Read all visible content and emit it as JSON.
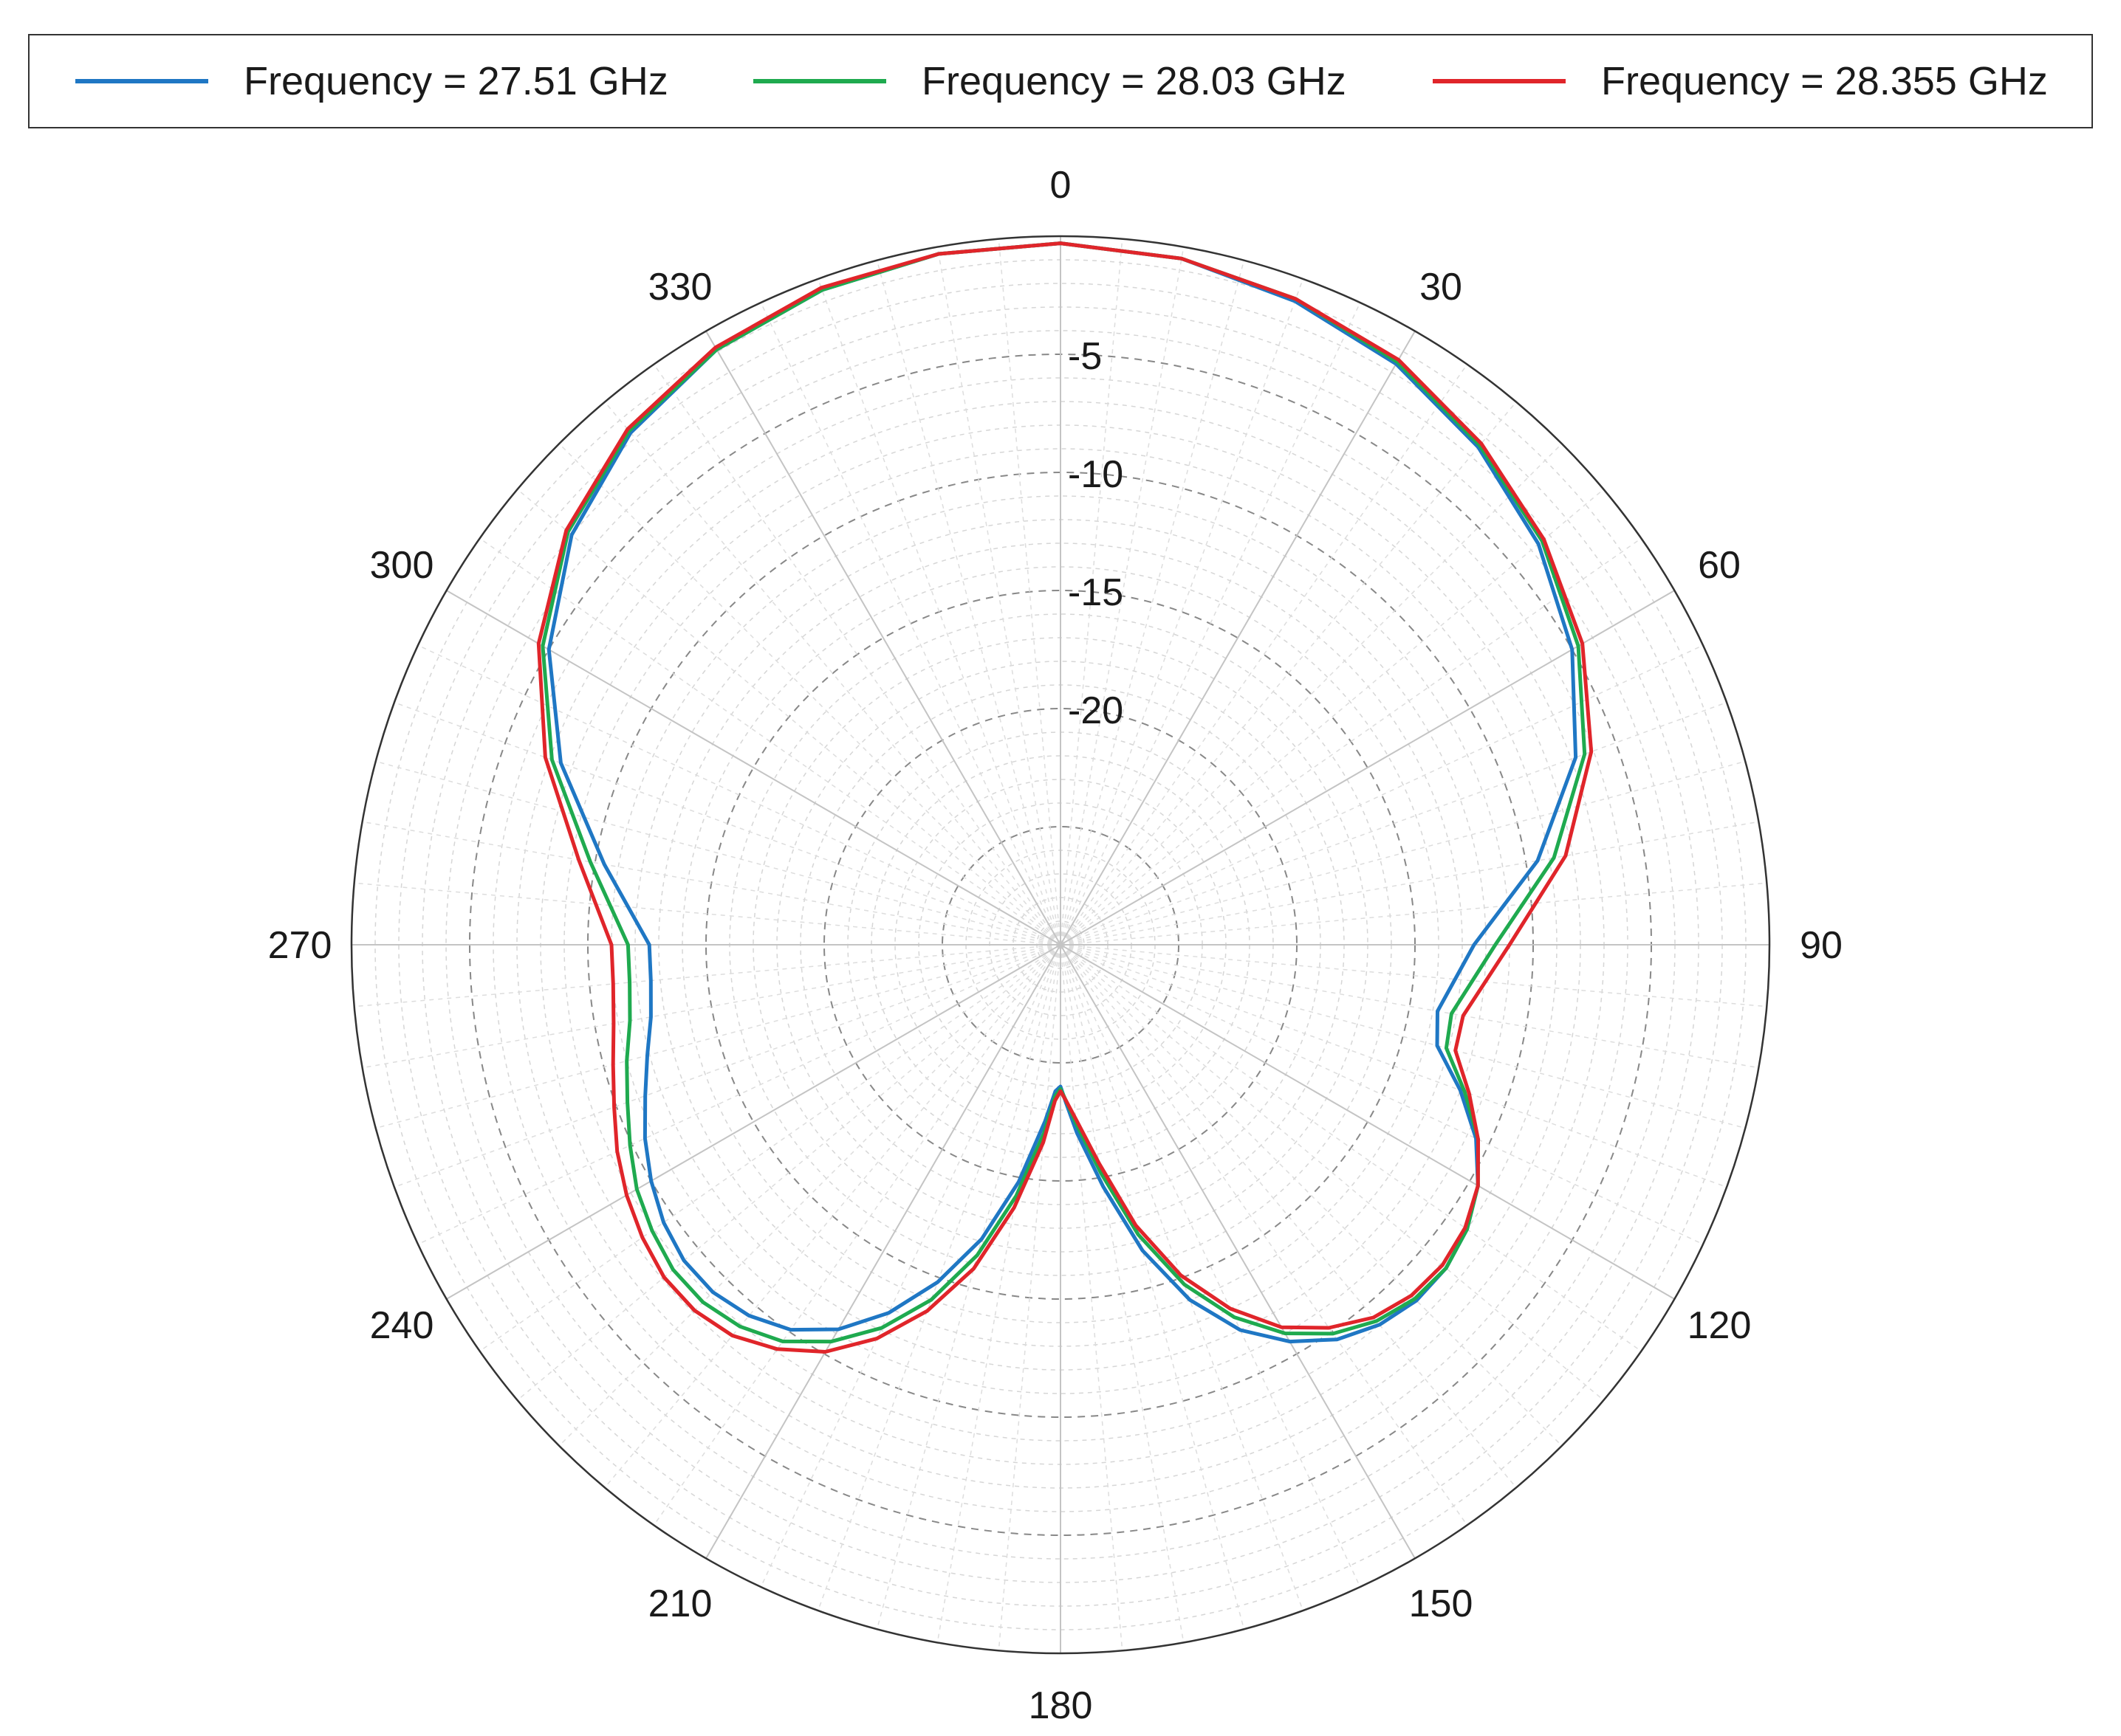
{
  "chart_data": {
    "type": "polar-line",
    "title": "",
    "angle_unit": "degrees",
    "angle_zero": "top",
    "angle_direction": "clockwise",
    "angle_ticks": [
      0,
      30,
      60,
      90,
      120,
      150,
      180,
      210,
      240,
      270,
      300,
      330
    ],
    "angle_tick_labels": [
      "0",
      "30",
      "60",
      "90",
      "120",
      "150",
      "180",
      "210",
      "240",
      "270",
      "300",
      "330"
    ],
    "r_range": [
      -30,
      0
    ],
    "r_ticks": [
      -5,
      -10,
      -15,
      -20
    ],
    "r_tick_labels": [
      "-5",
      "-10",
      "-15",
      "-20"
    ],
    "grid": true,
    "legend_position": "top",
    "series": [
      {
        "name": "Frequency = 27.51 GHz",
        "color": "#1f77c4",
        "angles": [
          0,
          10,
          20,
          30,
          40,
          50,
          60,
          70,
          80,
          90,
          100,
          105,
          110,
          115,
          120,
          125,
          130,
          135,
          140,
          145,
          150,
          155,
          160,
          165,
          170,
          175,
          178,
          180,
          182,
          185,
          190,
          195,
          200,
          205,
          210,
          215,
          220,
          225,
          230,
          235,
          240,
          245,
          250,
          255,
          260,
          265,
          270,
          280,
          290,
          300,
          310,
          320,
          330,
          340,
          350
        ],
        "values": [
          -0.3,
          -0.5,
          -1.0,
          -1.6,
          -2.5,
          -3.6,
          -5.0,
          -6.8,
          -9.5,
          -12.5,
          -13.8,
          -13.5,
          -12.0,
          -10.6,
          -9.6,
          -9.0,
          -8.7,
          -8.7,
          -9.0,
          -9.6,
          -10.6,
          -12.0,
          -14.0,
          -16.6,
          -19.6,
          -22.0,
          -23.3,
          -24.0,
          -23.8,
          -22.5,
          -19.8,
          -17.1,
          -14.8,
          -12.8,
          -11.2,
          -10.1,
          -9.5,
          -9.2,
          -9.2,
          -9.5,
          -10.0,
          -10.6,
          -11.3,
          -11.9,
          -12.4,
          -12.6,
          -12.6,
          -10.4,
          -7.5,
          -5.0,
          -3.0,
          -1.7,
          -0.9,
          -0.5,
          -0.3
        ]
      },
      {
        "name": "Frequency = 28.03 GHz",
        "color": "#1faa4f",
        "angles": [
          0,
          10,
          20,
          30,
          40,
          50,
          60,
          70,
          80,
          90,
          100,
          105,
          110,
          115,
          120,
          125,
          130,
          135,
          140,
          145,
          150,
          155,
          160,
          165,
          170,
          175,
          178,
          180,
          182,
          185,
          190,
          195,
          200,
          205,
          210,
          215,
          220,
          225,
          230,
          235,
          240,
          245,
          250,
          255,
          260,
          265,
          270,
          280,
          290,
          300,
          310,
          320,
          330,
          340,
          350
        ],
        "values": [
          -0.3,
          -0.5,
          -0.9,
          -1.5,
          -2.4,
          -3.4,
          -4.7,
          -6.4,
          -8.8,
          -11.6,
          -13.2,
          -13.1,
          -11.8,
          -10.5,
          -9.6,
          -9.0,
          -8.7,
          -8.8,
          -9.2,
          -9.9,
          -11.0,
          -12.6,
          -14.7,
          -17.3,
          -20.2,
          -22.4,
          -23.4,
          -23.9,
          -23.6,
          -22.0,
          -19.2,
          -16.4,
          -14.0,
          -12.1,
          -10.6,
          -9.5,
          -8.9,
          -8.6,
          -8.6,
          -8.9,
          -9.3,
          -9.9,
          -10.5,
          -11.0,
          -11.5,
          -11.7,
          -11.7,
          -9.8,
          -7.1,
          -4.7,
          -2.8,
          -1.6,
          -0.9,
          -0.5,
          -0.3
        ]
      },
      {
        "name": "Frequency = 28.355 GHz",
        "color": "#e0252a",
        "angles": [
          0,
          10,
          20,
          30,
          40,
          50,
          60,
          70,
          80,
          90,
          100,
          105,
          110,
          115,
          120,
          125,
          130,
          135,
          140,
          145,
          150,
          155,
          160,
          165,
          170,
          175,
          178,
          180,
          182,
          185,
          190,
          195,
          200,
          205,
          210,
          215,
          220,
          225,
          230,
          235,
          240,
          245,
          250,
          255,
          260,
          265,
          270,
          280,
          290,
          300,
          310,
          320,
          330,
          340,
          350
        ],
        "values": [
          -0.3,
          -0.5,
          -0.9,
          -1.4,
          -2.3,
          -3.3,
          -4.5,
          -6.1,
          -8.3,
          -11.0,
          -12.7,
          -12.7,
          -11.6,
          -10.5,
          -9.6,
          -9.1,
          -8.9,
          -9.0,
          -9.4,
          -10.2,
          -11.3,
          -13.0,
          -15.1,
          -17.7,
          -20.6,
          -22.6,
          -23.4,
          -23.8,
          -23.4,
          -21.6,
          -18.7,
          -15.8,
          -13.5,
          -11.6,
          -10.1,
          -9.1,
          -8.4,
          -8.1,
          -8.1,
          -8.4,
          -8.8,
          -9.3,
          -9.9,
          -10.4,
          -10.8,
          -11.0,
          -11.0,
          -9.3,
          -6.8,
          -4.5,
          -2.7,
          -1.5,
          -0.8,
          -0.4,
          -0.3
        ]
      }
    ]
  }
}
